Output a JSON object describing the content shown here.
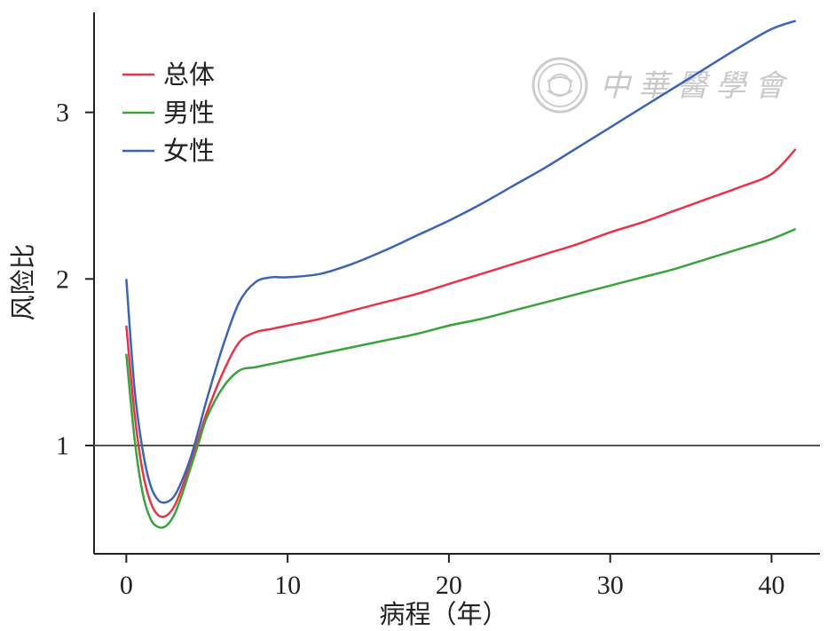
{
  "watermark": {
    "text": "中華醫學會",
    "emblem": "society-seal-icon"
  },
  "chart_data": {
    "type": "line",
    "xlabel": "病程（年）",
    "ylabel": "风险比",
    "xlim": [
      -2,
      43
    ],
    "ylim": [
      0.35,
      3.6
    ],
    "xticks": [
      0,
      10,
      20,
      30,
      40
    ],
    "yticks": [
      1,
      2,
      3
    ],
    "reference_line": {
      "y": 1,
      "color": "#555555"
    },
    "grid": false,
    "legend": {
      "position": "top-left"
    },
    "series": [
      {
        "name": "总体",
        "color": "#e8344a",
        "x": [
          0,
          0.5,
          1,
          1.5,
          2,
          2.5,
          3,
          3.5,
          4,
          4.5,
          5,
          6,
          7,
          8,
          9,
          10,
          12,
          14,
          16,
          18,
          20,
          22,
          24,
          26,
          28,
          30,
          32,
          34,
          36,
          38,
          40,
          41.5
        ],
        "y": [
          1.72,
          1.2,
          0.85,
          0.66,
          0.58,
          0.58,
          0.64,
          0.76,
          0.9,
          1.05,
          1.2,
          1.44,
          1.62,
          1.68,
          1.7,
          1.72,
          1.76,
          1.81,
          1.86,
          1.91,
          1.97,
          2.03,
          2.09,
          2.15,
          2.21,
          2.28,
          2.34,
          2.41,
          2.48,
          2.55,
          2.63,
          2.78
        ]
      },
      {
        "name": "男性",
        "color": "#3aa33a",
        "x": [
          0,
          0.5,
          1,
          1.5,
          2,
          2.5,
          3,
          3.5,
          4,
          4.5,
          5,
          6,
          7,
          8,
          9,
          10,
          12,
          14,
          16,
          18,
          20,
          22,
          24,
          26,
          28,
          30,
          32,
          34,
          36,
          38,
          40,
          41.5
        ],
        "y": [
          1.55,
          1.05,
          0.72,
          0.56,
          0.51,
          0.52,
          0.59,
          0.72,
          0.87,
          1.02,
          1.17,
          1.35,
          1.45,
          1.47,
          1.49,
          1.51,
          1.55,
          1.59,
          1.63,
          1.67,
          1.72,
          1.76,
          1.81,
          1.86,
          1.91,
          1.96,
          2.01,
          2.06,
          2.12,
          2.18,
          2.24,
          2.3
        ]
      },
      {
        "name": "女性",
        "color": "#3c64b4",
        "x": [
          0,
          0.5,
          1,
          1.5,
          2,
          2.5,
          3,
          3.5,
          4,
          4.5,
          5,
          6,
          7,
          8,
          9,
          10,
          12,
          14,
          16,
          18,
          20,
          22,
          24,
          26,
          28,
          30,
          32,
          34,
          36,
          38,
          40,
          41.5
        ],
        "y": [
          2.0,
          1.35,
          0.98,
          0.76,
          0.67,
          0.66,
          0.7,
          0.8,
          0.93,
          1.1,
          1.28,
          1.6,
          1.86,
          1.98,
          2.01,
          2.01,
          2.03,
          2.09,
          2.17,
          2.26,
          2.35,
          2.45,
          2.56,
          2.67,
          2.79,
          2.91,
          3.03,
          3.15,
          3.27,
          3.39,
          3.5,
          3.55
        ]
      }
    ]
  }
}
